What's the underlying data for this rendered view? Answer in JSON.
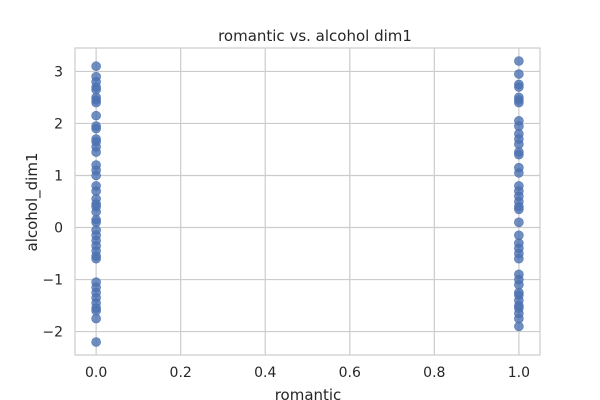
{
  "chart_data": {
    "type": "scatter",
    "title": "romantic vs. alcohol dim1",
    "xlabel": "romantic",
    "ylabel": "alcohol_dim1",
    "xlim": [
      -0.05,
      1.05
    ],
    "ylim": [
      -2.45,
      3.45
    ],
    "xticks": [
      0.0,
      0.2,
      0.4,
      0.6,
      0.8,
      1.0
    ],
    "xtick_labels": [
      "0.0",
      "0.2",
      "0.4",
      "0.6",
      "0.8",
      "1.0"
    ],
    "yticks": [
      -2,
      -1,
      0,
      1,
      2,
      3
    ],
    "ytick_labels": [
      "−2",
      "−1",
      "0",
      "1",
      "2",
      "3"
    ],
    "grid": true,
    "colors": {
      "point": "#4c72b0",
      "grid": "#cccccc",
      "frame": "#cccccc",
      "text": "#262626",
      "background": "#ffffff"
    },
    "series": [
      {
        "points": [
          [
            0,
            3.1
          ],
          [
            0,
            2.9
          ],
          [
            0,
            2.8
          ],
          [
            0,
            2.7
          ],
          [
            0,
            2.65
          ],
          [
            0,
            2.5
          ],
          [
            0,
            2.45
          ],
          [
            0,
            2.4
          ],
          [
            0,
            2.15
          ],
          [
            0,
            1.95
          ],
          [
            0,
            1.9
          ],
          [
            0,
            1.7
          ],
          [
            0,
            1.65
          ],
          [
            0,
            1.55
          ],
          [
            0,
            1.45
          ],
          [
            0,
            1.2
          ],
          [
            0,
            1.1
          ],
          [
            0,
            1.0
          ],
          [
            0,
            0.8
          ],
          [
            0,
            0.7
          ],
          [
            0,
            0.55
          ],
          [
            0,
            0.45
          ],
          [
            0,
            0.4
          ],
          [
            0,
            0.3
          ],
          [
            0,
            0.15
          ],
          [
            0,
            0.1
          ],
          [
            0,
            -0.05
          ],
          [
            0,
            -0.15
          ],
          [
            0,
            -0.25
          ],
          [
            0,
            -0.35
          ],
          [
            0,
            -0.45
          ],
          [
            0,
            -0.55
          ],
          [
            0,
            -0.6
          ],
          [
            0,
            -1.05
          ],
          [
            0,
            -1.15
          ],
          [
            0,
            -1.25
          ],
          [
            0,
            -1.35
          ],
          [
            0,
            -1.45
          ],
          [
            0,
            -1.55
          ],
          [
            0,
            -1.6
          ],
          [
            0,
            -1.75
          ],
          [
            0,
            -2.2
          ],
          [
            1,
            3.2
          ],
          [
            1,
            2.95
          ],
          [
            1,
            2.75
          ],
          [
            1,
            2.7
          ],
          [
            1,
            2.5
          ],
          [
            1,
            2.45
          ],
          [
            1,
            2.4
          ],
          [
            1,
            2.05
          ],
          [
            1,
            1.95
          ],
          [
            1,
            1.8
          ],
          [
            1,
            1.7
          ],
          [
            1,
            1.6
          ],
          [
            1,
            1.45
          ],
          [
            1,
            1.4
          ],
          [
            1,
            1.15
          ],
          [
            1,
            1.05
          ],
          [
            1,
            0.8
          ],
          [
            1,
            0.7
          ],
          [
            1,
            0.6
          ],
          [
            1,
            0.5
          ],
          [
            1,
            0.4
          ],
          [
            1,
            0.35
          ],
          [
            1,
            0.1
          ],
          [
            1,
            -0.15
          ],
          [
            1,
            -0.3
          ],
          [
            1,
            -0.4
          ],
          [
            1,
            -0.5
          ],
          [
            1,
            -0.6
          ],
          [
            1,
            -0.9
          ],
          [
            1,
            -1.0
          ],
          [
            1,
            -1.1
          ],
          [
            1,
            -1.25
          ],
          [
            1,
            -1.3
          ],
          [
            1,
            -1.4
          ],
          [
            1,
            -1.5
          ],
          [
            1,
            -1.55
          ],
          [
            1,
            -1.65
          ],
          [
            1,
            -1.75
          ],
          [
            1,
            -1.9
          ]
        ]
      }
    ]
  }
}
